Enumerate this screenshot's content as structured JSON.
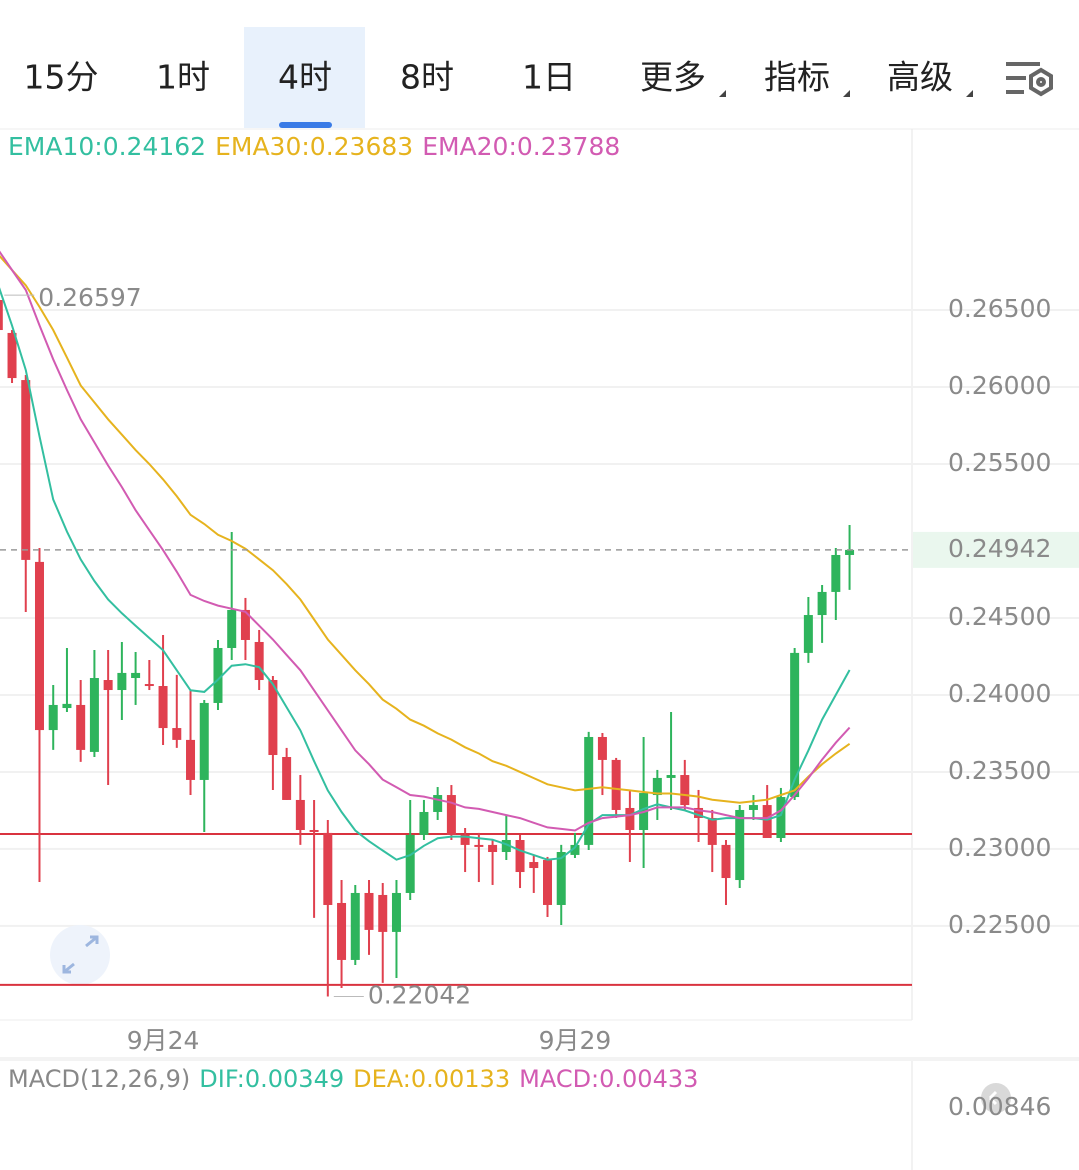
{
  "tabs": [
    "15分",
    "1时",
    "4时",
    "8时",
    "1日",
    "更多",
    "指标",
    "高级"
  ],
  "selected_tab": 2,
  "chart_data": {
    "type": "candlestick",
    "categories": [
      null,
      null,
      null,
      null,
      null,
      null,
      null,
      null,
      null,
      null,
      null,
      null,
      "9月24",
      null,
      null,
      null,
      null,
      null,
      null,
      null,
      null,
      null,
      null,
      null,
      null,
      null,
      null,
      null,
      null,
      null,
      null,
      null,
      null,
      null,
      null,
      null,
      null,
      null,
      null,
      null,
      null,
      null,
      "9月29",
      null,
      null,
      null,
      null,
      null,
      null,
      null,
      null,
      null,
      null,
      null,
      null,
      null,
      null,
      null,
      null,
      null,
      null,
      null,
      null
    ],
    "open": [
      0.26565,
      0.26351,
      0.26045,
      0.24864,
      0.23772,
      0.23915,
      0.23935,
      0.2363,
      0.24097,
      0.24032,
      0.2411,
      0.24071,
      0.24058,
      0.23785,
      0.23708,
      0.23448,
      0.23948,
      0.24305,
      0.24552,
      0.24344,
      0.24097,
      0.23597,
      0.23318,
      0.23123,
      0.23104,
      0.22649,
      0.22279,
      0.22714,
      0.22701,
      0.22461,
      0.22714,
      0.23091,
      0.2324,
      0.2335,
      0.23091,
      0.23026,
      0.23026,
      0.2298,
      0.23058,
      0.22915,
      0.22928,
      0.22636,
      0.22961,
      0.23026,
      0.23727,
      0.23578,
      0.23266,
      0.23123,
      0.2335,
      0.23461,
      0.2348,
      0.23266,
      0.23201,
      0.23026,
      0.22798,
      0.23253,
      0.23285,
      0.23071,
      0.23337,
      0.24273,
      0.24519,
      0.24669,
      0.24909
    ],
    "high": [
      0.26597,
      0.2637,
      0.26078,
      0.24954,
      0.24065,
      0.24305,
      0.24097,
      0.24292,
      0.24292,
      0.24344,
      0.24279,
      0.24227,
      0.24389,
      0.2413,
      0.24032,
      0.23967,
      0.24357,
      0.25058,
      0.2463,
      0.24422,
      0.24123,
      0.23656,
      0.2348,
      0.23318,
      0.23188,
      0.22798,
      0.22766,
      0.22798,
      0.22779,
      0.22798,
      0.23318,
      0.23318,
      0.23402,
      0.23415,
      0.23136,
      0.23104,
      0.23058,
      0.23221,
      0.23091,
      0.22961,
      0.22948,
      0.23026,
      0.23104,
      0.2376,
      0.23753,
      0.23591,
      0.23383,
      0.23727,
      0.23513,
      0.23889,
      0.23578,
      0.23383,
      0.23253,
      0.23058,
      0.23285,
      0.2335,
      0.23415,
      0.23396,
      0.24305,
      0.24636,
      0.24714,
      0.24954,
      0.25104
    ],
    "low": [
      0.26338,
      0.26026,
      0.24539,
      0.22785,
      0.23643,
      0.23889,
      0.23565,
      0.23597,
      0.23415,
      0.23837,
      0.23935,
      0.24032,
      0.23675,
      0.23656,
      0.2335,
      0.2311,
      0.23902,
      0.24227,
      0.24227,
      0.24032,
      0.23383,
      0.23318,
      0.23026,
      0.22552,
      0.22042,
      0.22097,
      0.22246,
      0.22312,
      0.2213,
      0.22162,
      0.22668,
      0.23058,
      0.23188,
      0.23058,
      0.2285,
      0.22785,
      0.22766,
      0.22928,
      0.22746,
      0.22714,
      0.22558,
      0.22506,
      0.22941,
      0.22993,
      0.2335,
      0.23201,
      0.22915,
      0.22876,
      0.23188,
      0.23253,
      0.23253,
      0.23045,
      0.2285,
      0.22636,
      0.22746,
      0.23188,
      0.23071,
      0.23045,
      0.23318,
      0.24208,
      0.24338,
      0.24487,
      0.24682
    ],
    "close": [
      0.2637,
      0.26058,
      0.24877,
      0.23772,
      0.23935,
      0.23942,
      0.23643,
      0.2411,
      0.24032,
      0.24143,
      0.24143,
      0.24058,
      0.23785,
      0.23708,
      0.23448,
      0.23948,
      0.24305,
      0.24552,
      0.24357,
      0.24097,
      0.2361,
      0.23318,
      0.23123,
      0.2311,
      0.22636,
      0.22279,
      0.22714,
      0.22474,
      0.22461,
      0.22714,
      0.23091,
      0.2324,
      0.2335,
      0.23091,
      0.23026,
      0.23013,
      0.2298,
      0.23058,
      0.2285,
      0.22876,
      0.22636,
      0.2298,
      0.23026,
      0.23727,
      0.23578,
      0.23253,
      0.23123,
      0.23363,
      0.23461,
      0.2348,
      0.23285,
      0.23201,
      0.23026,
      0.22811,
      0.23253,
      0.23285,
      0.23071,
      0.23337,
      0.24273,
      0.24519,
      0.24669,
      0.24909,
      0.24942
    ],
    "up_color": "#2eb45c",
    "down_color": "#e0404e",
    "series": [
      {
        "name": "EMA10:0.24162",
        "color": "#33bfa0",
        "values": [
          0.2666,
          0.264,
          0.2611,
          0.2568,
          0.2527,
          0.2506,
          0.2488,
          0.2474,
          0.2462,
          0.2453,
          0.2445,
          0.2437,
          0.2429,
          0.2416,
          0.2403,
          0.2402,
          0.241,
          0.2419,
          0.242,
          0.2418,
          0.2407,
          0.2392,
          0.2377,
          0.2357,
          0.2338,
          0.2324,
          0.2312,
          0.2305,
          0.2299,
          0.2293,
          0.2296,
          0.2302,
          0.2307,
          0.2308,
          0.2308,
          0.2307,
          0.2306,
          0.2303,
          0.2299,
          0.2296,
          0.2293,
          0.2294,
          0.2301,
          0.2316,
          0.2322,
          0.2322,
          0.2322,
          0.2326,
          0.2329,
          0.2327,
          0.2325,
          0.2322,
          0.2319,
          0.232,
          0.232,
          0.232,
          0.2319,
          0.2322,
          0.2345,
          0.2364,
          0.2384,
          0.24,
          0.24162
        ]
      },
      {
        "name": "EMA30:0.23683",
        "color": "#e6b31e",
        "values": [
          0.2686,
          0.2676,
          0.2666,
          0.2652,
          0.2637,
          0.2619,
          0.2601,
          0.259,
          0.2579,
          0.2569,
          0.2559,
          0.255,
          0.254,
          0.2529,
          0.2517,
          0.2511,
          0.2504,
          0.25,
          0.2495,
          0.2488,
          0.2481,
          0.2472,
          0.2462,
          0.2449,
          0.2436,
          0.2426,
          0.2416,
          0.2407,
          0.2397,
          0.2391,
          0.2384,
          0.238,
          0.2375,
          0.2371,
          0.2366,
          0.2362,
          0.2357,
          0.2354,
          0.235,
          0.2346,
          0.2342,
          0.234,
          0.2338,
          0.2339,
          0.234,
          0.2339,
          0.2338,
          0.2337,
          0.2336,
          0.2336,
          0.2335,
          0.2334,
          0.2332,
          0.2331,
          0.233,
          0.2331,
          0.2332,
          0.2335,
          0.2338,
          0.2347,
          0.2355,
          0.2362,
          0.23683
        ]
      },
      {
        "name": "EMA20:0.23788",
        "color": "#d25bb2",
        "values": [
          0.2689,
          0.2676,
          0.2663,
          0.264,
          0.2618,
          0.2598,
          0.2579,
          0.2564,
          0.2549,
          0.2535,
          0.252,
          0.2507,
          0.2494,
          0.248,
          0.2465,
          0.2461,
          0.2458,
          0.2456,
          0.2454,
          0.2445,
          0.2436,
          0.2426,
          0.2416,
          0.2403,
          0.239,
          0.2377,
          0.2364,
          0.2355,
          0.2345,
          0.234,
          0.2335,
          0.2334,
          0.2332,
          0.233,
          0.2327,
          0.2326,
          0.2324,
          0.2322,
          0.232,
          0.2317,
          0.2314,
          0.2313,
          0.2312,
          0.2317,
          0.232,
          0.2321,
          0.2322,
          0.2324,
          0.2327,
          0.2327,
          0.2327,
          0.2325,
          0.2324,
          0.2322,
          0.232,
          0.232,
          0.232,
          0.2325,
          0.2335,
          0.2346,
          0.2358,
          0.2369,
          0.23788
        ]
      }
    ],
    "ylim": [
      0.21889,
      0.27669
    ],
    "yticks": [
      {
        "value": 0.265,
        "label": "0.26500"
      },
      {
        "value": 0.26,
        "label": "0.26000"
      },
      {
        "value": 0.255,
        "label": "0.25500"
      },
      {
        "value": 0.245,
        "label": "0.24500"
      },
      {
        "value": 0.24,
        "label": "0.24000"
      },
      {
        "value": 0.235,
        "label": "0.23500"
      },
      {
        "value": 0.23,
        "label": "0.23000"
      },
      {
        "value": 0.225,
        "label": "0.22500"
      }
    ],
    "hlines": [
      0.23097,
      0.22117
    ],
    "hline_color": "#d9333f",
    "grid": true
  },
  "macd": {
    "title": "MACD(12,26,9)",
    "items": [
      {
        "text": "DIF:0.00349",
        "color": "#33bfa0"
      },
      {
        "text": "DEA:0.00133",
        "color": "#e6b31e"
      },
      {
        "text": "MACD:0.00433",
        "color": "#d25bb2"
      }
    ],
    "tick": "0.00846"
  }
}
